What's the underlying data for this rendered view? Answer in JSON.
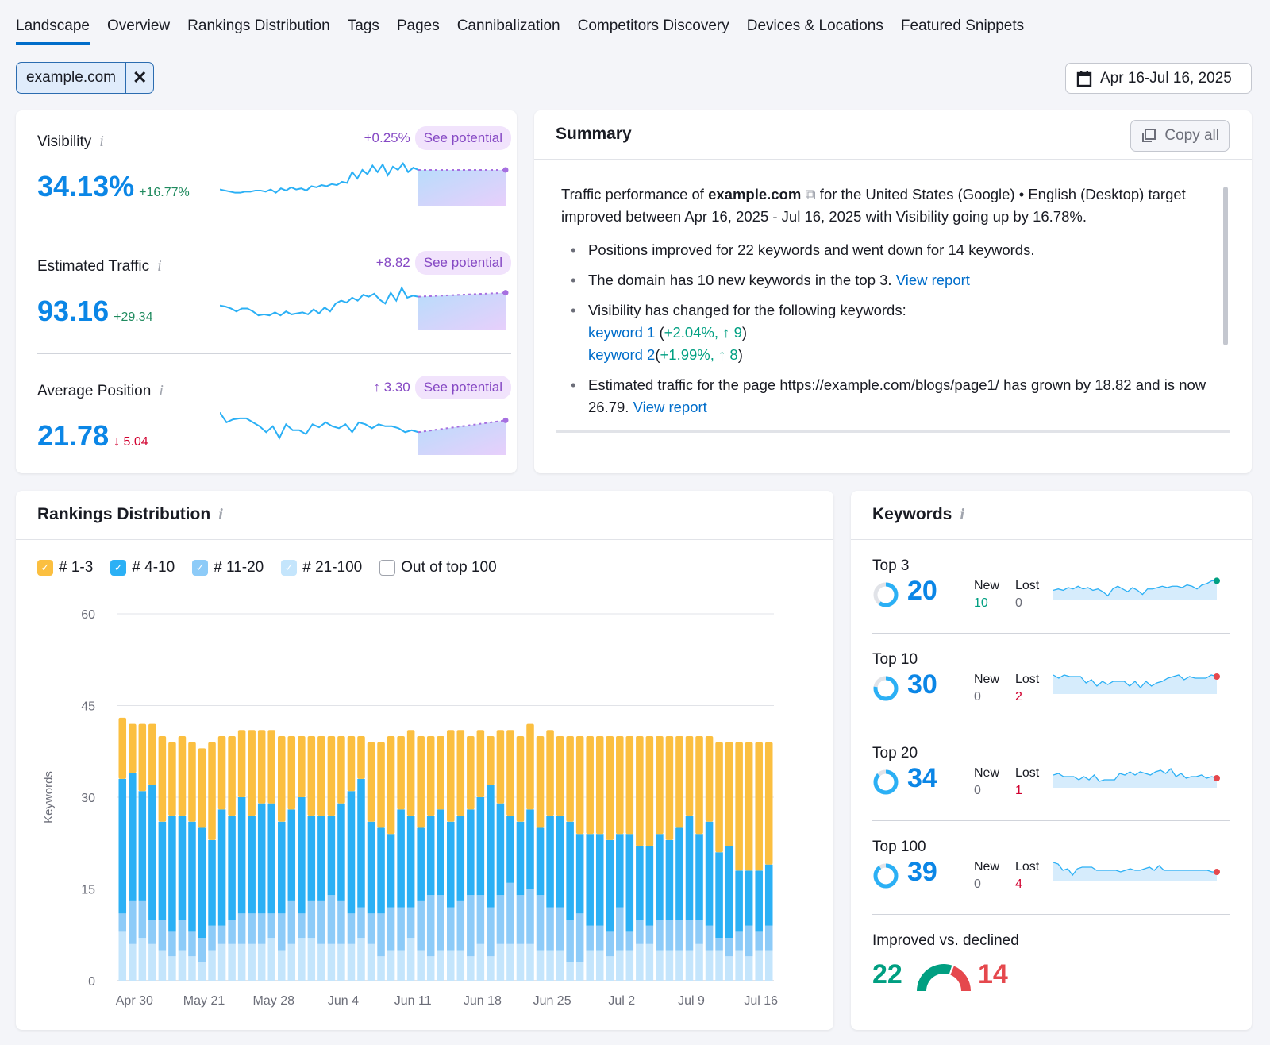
{
  "tabs": [
    "Landscape",
    "Overview",
    "Rankings Distribution",
    "Tags",
    "Pages",
    "Cannibalization",
    "Competitors Discovery",
    "Devices & Locations",
    "Featured Snippets"
  ],
  "active_tab": "Landscape",
  "filter_chip": {
    "label": "example.com",
    "close_icon": "close-icon"
  },
  "date_range": {
    "label": "Apr 16-Jul 16, 2025",
    "icon": "calendar-icon"
  },
  "colors": {
    "accent": "#0b86e6",
    "purple": "#8649c4",
    "green": "#009f81",
    "red": "#e5484d",
    "bar_1_3": "#fbbf40",
    "bar_4_10": "#2bb0f5",
    "bar_11_20": "#8dcbf8",
    "bar_21_100": "#c4e5fc"
  },
  "metrics": [
    {
      "label": "Visibility",
      "value": "34.13%",
      "change": "+16.77%",
      "change_dir": "up",
      "potential": "+0.25%",
      "see_potential": "See potential",
      "trend": [
        12,
        11,
        10,
        9,
        9,
        10,
        10,
        11,
        11,
        10,
        12,
        9,
        13,
        11,
        14,
        12,
        13,
        11,
        15,
        14,
        16,
        15,
        17,
        16,
        19,
        18,
        28,
        22,
        30,
        26,
        34,
        28,
        35,
        25,
        33,
        30,
        36,
        28,
        32,
        30
      ],
      "forecast_end": 30
    },
    {
      "label": "Estimated Traffic",
      "value": "93.16",
      "change": "+29.34",
      "change_dir": "up",
      "potential": "+8.82",
      "see_potential": "See potential",
      "trend": [
        22,
        21,
        19,
        16,
        19,
        19,
        16,
        12,
        13,
        12,
        15,
        12,
        16,
        13,
        14,
        15,
        13,
        18,
        14,
        20,
        16,
        24,
        27,
        25,
        30,
        27,
        33,
        31,
        34,
        28,
        24,
        35,
        27,
        40,
        30,
        32,
        31
      ],
      "forecast_end": 35
    },
    {
      "label": "Average Position",
      "value": "21.78",
      "change": "↓ 5.04",
      "change_dir": "down",
      "potential": "↑ 3.30",
      "see_potential": "See potential",
      "trend": [
        40,
        30,
        33,
        34,
        34,
        30,
        26,
        20,
        26,
        14,
        28,
        22,
        22,
        18,
        28,
        25,
        30,
        26,
        24,
        28,
        20,
        30,
        28,
        24,
        28,
        26,
        26,
        24,
        20,
        22,
        20
      ],
      "forecast_end": 32
    }
  ],
  "summary": {
    "title": "Summary",
    "copy_all": "Copy all",
    "intro_pre": "Traffic performance of ",
    "intro_domain": "example.com",
    "intro_post": " for the United States (Google) • English (Desktop) target improved between Apr 16, 2025 - Jul 16, 2025 with Visibility going up by 16.78%.",
    "b1": "Positions improved for 22 keywords and went down for 14 keywords.",
    "b2": "The domain has 10 new keywords in the top 3. ",
    "b2_link": "View report",
    "b3": "Visibility has changed for the following keywords:",
    "kw1": "keyword 1",
    "kw1_stats": "+2.04%, ↑ 9",
    "kw2": "keyword 2",
    "kw2_stats": "+1.99%, ↑ 8",
    "b4": "Estimated traffic for the page https://example.com/blogs/page1/ has grown by 18.82 and is now 26.79. ",
    "b4_link": "View report"
  },
  "rankings": {
    "title": "Rankings Distribution"
  },
  "chart_data": {
    "type": "bar",
    "stacked": true,
    "ylabel": "Keywords",
    "ylim": [
      0,
      60
    ],
    "yticks": [
      0,
      15,
      30,
      45,
      60
    ],
    "grid": true,
    "x_tick_labels": [
      "Apr 30",
      "May 21",
      "May 28",
      "Jun 4",
      "Jun 11",
      "Jun 18",
      "Jun 25",
      "Jul 2",
      "Jul 9",
      "Jul 16"
    ],
    "legend": [
      {
        "name": "# 1-3",
        "checked": true
      },
      {
        "name": "# 4-10",
        "checked": true
      },
      {
        "name": "# 11-20",
        "checked": true
      },
      {
        "name": "# 21-100",
        "checked": true
      },
      {
        "name": "Out of top 100",
        "checked": false
      }
    ],
    "series": [
      {
        "name": "# 21-100",
        "values": [
          8,
          6,
          7,
          6,
          5,
          4,
          5,
          4,
          3,
          5,
          6,
          6,
          6,
          6,
          6,
          7,
          5,
          6,
          7,
          7,
          6,
          6,
          6,
          6,
          7,
          6,
          4,
          5,
          5,
          7,
          5,
          4,
          5,
          5,
          5,
          4,
          6,
          4,
          6,
          6,
          6,
          6,
          5,
          5,
          5,
          3,
          3,
          5,
          5,
          4,
          5,
          5,
          6,
          6,
          5,
          5,
          5,
          5,
          6,
          5,
          5,
          4,
          5,
          4,
          5,
          5
        ]
      },
      {
        "name": "# 11-20",
        "values": [
          3,
          7,
          6,
          4,
          5,
          4,
          5,
          4,
          4,
          4,
          3,
          4,
          5,
          5,
          5,
          4,
          6,
          7,
          4,
          6,
          7,
          8,
          7,
          5,
          5,
          5,
          7,
          7,
          7,
          5,
          8,
          10,
          9,
          7,
          8,
          10,
          8,
          8,
          8,
          10,
          8,
          9,
          9,
          7,
          7,
          7,
          8,
          4,
          4,
          4,
          7,
          3,
          4,
          3,
          5,
          5,
          5,
          5,
          4,
          4,
          2,
          3,
          3,
          5,
          3,
          4
        ]
      },
      {
        "name": "# 4-10",
        "values": [
          22,
          21,
          18,
          22,
          16,
          19,
          17,
          18,
          18,
          14,
          19,
          17,
          19,
          16,
          18,
          18,
          15,
          15,
          19,
          14,
          14,
          13,
          16,
          20,
          21,
          15,
          14,
          12,
          16,
          15,
          12,
          13,
          14,
          14,
          14,
          14,
          16,
          20,
          15,
          11,
          12,
          13,
          11,
          15,
          15,
          16,
          13,
          15,
          15,
          15,
          12,
          16,
          12,
          13,
          14,
          13,
          15,
          17,
          14,
          17,
          14,
          15,
          10,
          9,
          10,
          10
        ]
      },
      {
        "name": "# 1-3",
        "values": [
          10,
          8,
          11,
          10,
          14,
          12,
          13,
          13,
          13,
          16,
          12,
          13,
          11,
          14,
          12,
          12,
          14,
          12,
          10,
          13,
          13,
          13,
          11,
          9,
          7,
          13,
          14,
          16,
          12,
          14,
          15,
          13,
          12,
          15,
          14,
          12,
          11,
          8,
          12,
          14,
          14,
          14,
          15,
          14,
          13,
          14,
          16,
          16,
          16,
          17,
          16,
          16,
          18,
          18,
          16,
          17,
          15,
          13,
          16,
          14,
          18,
          17,
          21,
          21,
          21,
          20
        ]
      }
    ]
  },
  "keywords": {
    "title": "Keywords",
    "new_label": "New",
    "lost_label": "Lost",
    "rows": [
      {
        "label": "Top 3",
        "value": "20",
        "new": "10",
        "lost": "0",
        "ring_fraction": 0.6,
        "end_color": "#009f81",
        "trend": [
          5,
          6,
          5,
          7,
          6,
          8,
          6,
          7,
          5,
          6,
          4,
          1,
          6,
          8,
          6,
          4,
          7,
          5,
          2,
          6,
          6,
          7,
          8,
          7,
          8,
          8,
          7,
          9,
          8,
          6,
          9,
          10,
          12,
          12
        ]
      },
      {
        "label": "Top 10",
        "value": "30",
        "new": "0",
        "lost": "2",
        "ring_fraction": 0.77,
        "end_color": "#e5484d",
        "trend": [
          10,
          8,
          10,
          9,
          9,
          9,
          5,
          7,
          3,
          6,
          4,
          6,
          6,
          6,
          3,
          6,
          2,
          6,
          3,
          5,
          6,
          8,
          9,
          10,
          7,
          9,
          8,
          8,
          8,
          10,
          9
        ]
      },
      {
        "label": "Top 20",
        "value": "34",
        "new": "0",
        "lost": "1",
        "ring_fraction": 0.87,
        "end_color": "#e5484d",
        "trend": [
          6,
          7,
          5,
          5,
          5,
          3,
          5,
          3,
          6,
          2,
          3,
          3,
          3,
          7,
          6,
          8,
          6,
          8,
          7,
          6,
          8,
          9,
          7,
          10,
          5,
          7,
          4,
          5,
          5,
          6,
          4,
          5,
          4
        ]
      },
      {
        "label": "Top 100",
        "value": "39",
        "new": "0",
        "lost": "4",
        "ring_fraction": 0.9,
        "end_color": "#e5484d",
        "trend": [
          10,
          9,
          5,
          6,
          2,
          6,
          7,
          7,
          7,
          5,
          5,
          5,
          5,
          5,
          4,
          5,
          6,
          5,
          5,
          6,
          7,
          5,
          8,
          5,
          5,
          5,
          5,
          5,
          5,
          5,
          5,
          5,
          5,
          4,
          4
        ]
      }
    ],
    "improved_label": "Improved vs. declined",
    "improved": "22",
    "declined": "14",
    "improved_num": 22,
    "declined_num": 14
  }
}
